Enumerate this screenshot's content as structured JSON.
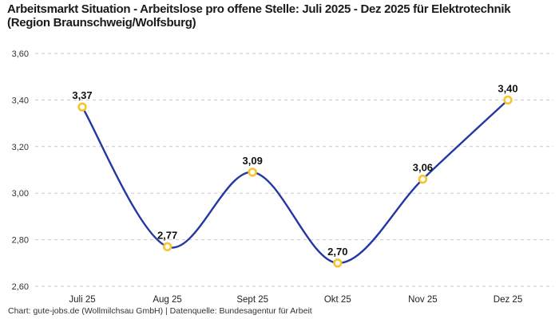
{
  "title": "Arbeitsmarkt Situation - Arbeitslose pro offene Stelle: Juli 2025 - Dez 2025 für Elektrotechnik (Region Braunschweig/Wolfsburg)",
  "footer": "Chart: gute-jobs.de (Wollmilchsau GmbH) | Datenquelle: Bundesagentur für Arbeit",
  "chart_data": {
    "type": "line",
    "title": "Arbeitsmarkt Situation - Arbeitslose pro offene Stelle: Juli 2025 - Dez 2025 für Elektrotechnik (Region Braunschweig/Wolfsburg)",
    "categories": [
      "Juli 25",
      "Aug 25",
      "Sept 25",
      "Okt 25",
      "Nov 25",
      "Dez 25"
    ],
    "values": [
      3.37,
      2.77,
      3.09,
      2.7,
      3.06,
      3.4
    ],
    "point_labels": [
      "3,37",
      "2,77",
      "3,09",
      "2,70",
      "3,06",
      "3,40"
    ],
    "xlabel": "",
    "ylabel": "",
    "ylim": [
      2.6,
      3.6
    ],
    "ytick_step": 0.2,
    "ytick_labels": [
      "2,60",
      "2,80",
      "3,00",
      "3,20",
      "3,40",
      "3,60"
    ],
    "grid": "horizontal-dashed",
    "legend": "none",
    "line_style": "smooth-spline",
    "colors": {
      "line": "#2238a4",
      "marker_stroke": "#f9c32b",
      "marker_fill": "#ffffff",
      "grid": "#cacaca",
      "title": "#1a1a1a",
      "tick": "#333333",
      "point_label": "#111111",
      "footer": "#333333",
      "background": "#ffffff"
    }
  }
}
